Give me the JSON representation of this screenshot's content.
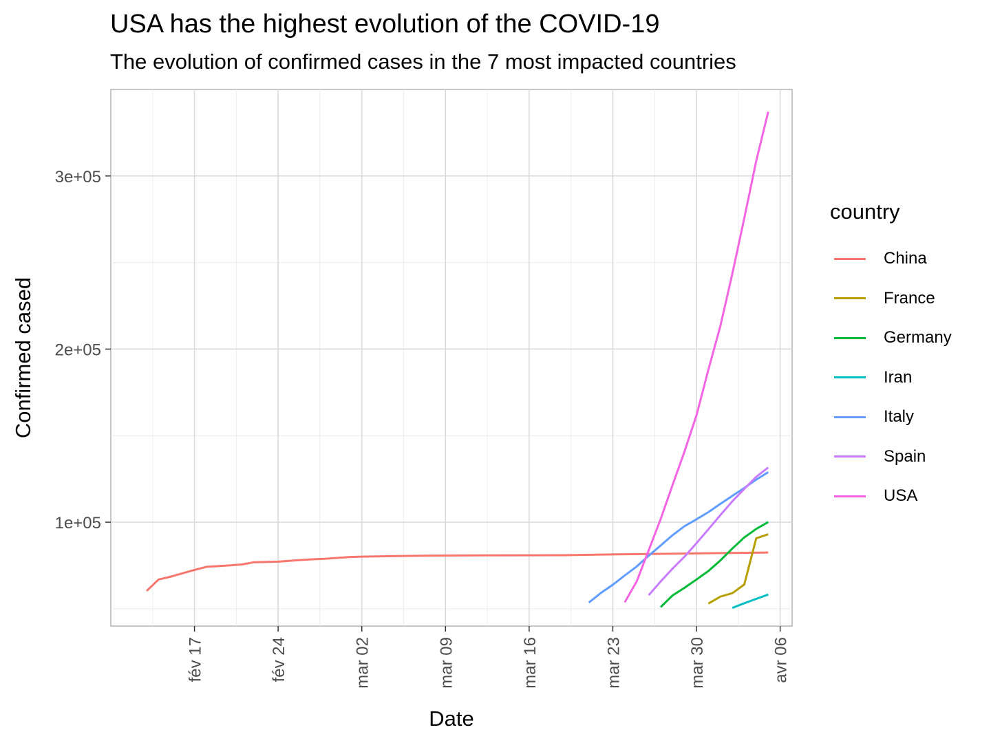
{
  "title": "USA has the highest evolution of the COVID-19",
  "subtitle": "The evolution of confirmed cases in the 7 most impacted countries",
  "chart_data": {
    "type": "line",
    "title": "USA has the highest evolution of the COVID-19",
    "subtitle": "The evolution of confirmed cases in the 7 most impacted countries",
    "xlabel": "Date",
    "ylabel": "Confirmed cased",
    "x_ticks": [
      {
        "date": "2020-02-17",
        "label": "fév 17"
      },
      {
        "date": "2020-02-24",
        "label": "fév 24"
      },
      {
        "date": "2020-03-02",
        "label": "mar 02"
      },
      {
        "date": "2020-03-09",
        "label": "mar 09"
      },
      {
        "date": "2020-03-16",
        "label": "mar 16"
      },
      {
        "date": "2020-03-23",
        "label": "mar 23"
      },
      {
        "date": "2020-03-30",
        "label": "mar 30"
      },
      {
        "date": "2020-04-06",
        "label": "avr 06"
      }
    ],
    "y_ticks": [
      {
        "value": 100000,
        "label": "1e+05"
      },
      {
        "value": 200000,
        "label": "2e+05"
      },
      {
        "value": 300000,
        "label": "3e+05"
      }
    ],
    "xlim": [
      "2020-02-10",
      "2020-04-07"
    ],
    "ylim": [
      40000,
      350000
    ],
    "grid": true,
    "legend_title": "country",
    "legend_position": "right",
    "series": [
      {
        "name": "China",
        "color": "#F8766D",
        "points": [
          [
            "2020-02-13",
            60300
          ],
          [
            "2020-02-14",
            66900
          ],
          [
            "2020-02-15",
            68500
          ],
          [
            "2020-02-16",
            70500
          ],
          [
            "2020-02-17",
            72400
          ],
          [
            "2020-02-18",
            74200
          ],
          [
            "2020-02-19",
            74600
          ],
          [
            "2020-02-20",
            75100
          ],
          [
            "2020-02-21",
            75600
          ],
          [
            "2020-02-22",
            76900
          ],
          [
            "2020-02-23",
            77000
          ],
          [
            "2020-02-24",
            77200
          ],
          [
            "2020-02-25",
            77700
          ],
          [
            "2020-02-26",
            78200
          ],
          [
            "2020-02-27",
            78600
          ],
          [
            "2020-02-28",
            78900
          ],
          [
            "2020-02-29",
            79400
          ],
          [
            "2020-03-01",
            79900
          ],
          [
            "2020-03-02",
            80100
          ],
          [
            "2020-03-05",
            80400
          ],
          [
            "2020-03-08",
            80700
          ],
          [
            "2020-03-12",
            80800
          ],
          [
            "2020-03-16",
            80900
          ],
          [
            "2020-03-19",
            80950
          ],
          [
            "2020-03-22",
            81300
          ],
          [
            "2020-03-26",
            81600
          ],
          [
            "2020-03-29",
            81900
          ],
          [
            "2020-04-02",
            82200
          ],
          [
            "2020-04-05",
            82500
          ]
        ]
      },
      {
        "name": "France",
        "color": "#B79F00",
        "points": [
          [
            "2020-03-31",
            53000
          ],
          [
            "2020-04-01",
            57000
          ],
          [
            "2020-04-02",
            59000
          ],
          [
            "2020-04-03",
            64000
          ],
          [
            "2020-04-04",
            90700
          ],
          [
            "2020-04-05",
            93000
          ]
        ]
      },
      {
        "name": "Germany",
        "color": "#00BA38",
        "points": [
          [
            "2020-03-27",
            50900
          ],
          [
            "2020-03-28",
            57700
          ],
          [
            "2020-03-29",
            62100
          ],
          [
            "2020-03-30",
            66900
          ],
          [
            "2020-03-31",
            71800
          ],
          [
            "2020-04-01",
            77900
          ],
          [
            "2020-04-02",
            84800
          ],
          [
            "2020-04-03",
            91200
          ],
          [
            "2020-04-04",
            96100
          ],
          [
            "2020-04-05",
            100100
          ]
        ]
      },
      {
        "name": "Iran",
        "color": "#00BFC4",
        "points": [
          [
            "2020-04-02",
            50500
          ],
          [
            "2020-04-03",
            53200
          ],
          [
            "2020-04-04",
            55700
          ],
          [
            "2020-04-05",
            58200
          ]
        ]
      },
      {
        "name": "Italy",
        "color": "#619CFF",
        "points": [
          [
            "2020-03-21",
            53600
          ],
          [
            "2020-03-22",
            59100
          ],
          [
            "2020-03-23",
            63900
          ],
          [
            "2020-03-24",
            69200
          ],
          [
            "2020-03-25",
            74400
          ],
          [
            "2020-03-26",
            80600
          ],
          [
            "2020-03-27",
            86500
          ],
          [
            "2020-03-28",
            92500
          ],
          [
            "2020-03-29",
            97700
          ],
          [
            "2020-03-30",
            101700
          ],
          [
            "2020-03-31",
            105800
          ],
          [
            "2020-04-01",
            110600
          ],
          [
            "2020-04-02",
            115200
          ],
          [
            "2020-04-03",
            119800
          ],
          [
            "2020-04-04",
            124600
          ],
          [
            "2020-04-05",
            128900
          ]
        ]
      },
      {
        "name": "Spain",
        "color": "#C77CFF",
        "points": [
          [
            "2020-03-26",
            57800
          ],
          [
            "2020-03-27",
            65700
          ],
          [
            "2020-03-28",
            73200
          ],
          [
            "2020-03-29",
            80100
          ],
          [
            "2020-03-30",
            87900
          ],
          [
            "2020-03-31",
            95900
          ],
          [
            "2020-04-01",
            104100
          ],
          [
            "2020-04-02",
            112100
          ],
          [
            "2020-04-03",
            119200
          ],
          [
            "2020-04-04",
            126200
          ],
          [
            "2020-04-05",
            131600
          ]
        ]
      },
      {
        "name": "USA",
        "color": "#F564E3",
        "points": [
          [
            "2020-03-24",
            53700
          ],
          [
            "2020-03-25",
            65800
          ],
          [
            "2020-03-26",
            83800
          ],
          [
            "2020-03-27",
            101700
          ],
          [
            "2020-03-28",
            121500
          ],
          [
            "2020-03-29",
            140900
          ],
          [
            "2020-03-30",
            161800
          ],
          [
            "2020-03-31",
            188200
          ],
          [
            "2020-04-01",
            213400
          ],
          [
            "2020-04-02",
            243600
          ],
          [
            "2020-04-03",
            275600
          ],
          [
            "2020-04-04",
            308800
          ],
          [
            "2020-04-05",
            337100
          ]
        ]
      }
    ]
  }
}
